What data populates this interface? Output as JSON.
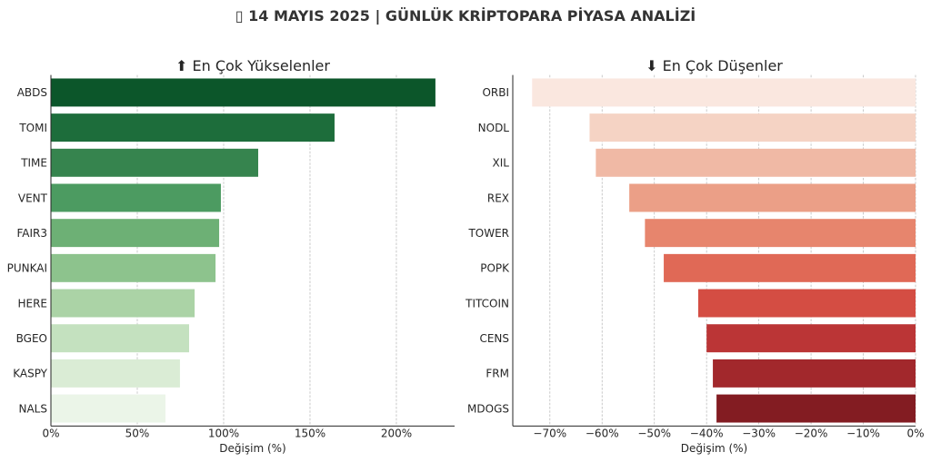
{
  "title": "▯ 14 MAYIS 2025 | GÜNLÜK KRİPTOPARA PİYASA ANALİZİ",
  "chart_data": [
    {
      "type": "bar",
      "orientation": "horizontal",
      "title": "⬆ En Çok Yükselenler",
      "xlabel": "Değişim (%)",
      "ylabel": "",
      "categories": [
        "ABDS",
        "TOMI",
        "TIME",
        "VENT",
        "FAIR3",
        "PUNKAI",
        "HERE",
        "BGEO",
        "KASPY",
        "NALS"
      ],
      "values": [
        222.6,
        164.2,
        120.0,
        98.4,
        97.4,
        95.3,
        83.2,
        80.0,
        74.7,
        66.3
      ],
      "colors": [
        "#0c562a",
        "#1d6d3b",
        "#36844e",
        "#4c9b61",
        "#6db075",
        "#8dc38d",
        "#abd3a6",
        "#c4e1bf",
        "#daecd5",
        "#ebf5e8"
      ],
      "xlim": [
        0,
        233.7
      ],
      "xticks": [
        0,
        50,
        100,
        150,
        200
      ],
      "xtick_labels": [
        "0%",
        "50%",
        "100%",
        "150%",
        "200%"
      ],
      "grid": true
    },
    {
      "type": "bar",
      "orientation": "horizontal",
      "title": "⬇ En Çok Düşenler",
      "xlabel": "Değişim (%)",
      "ylabel": "",
      "categories": [
        "ORBI",
        "NODL",
        "XIL",
        "REX",
        "TOWER",
        "POPK",
        "TITCOIN",
        "CENS",
        "FRM",
        "MDOGS"
      ],
      "values": [
        -73.4,
        -62.4,
        -61.2,
        -54.8,
        -51.8,
        -48.2,
        -41.6,
        -40.0,
        -38.8,
        -38.1
      ],
      "colors": [
        "#fae7df",
        "#f5d3c4",
        "#f0b9a5",
        "#eb9f87",
        "#e7856d",
        "#e06956",
        "#d44d43",
        "#bb3536",
        "#a2282c",
        "#831c22"
      ],
      "xlim": [
        -77.1,
        0
      ],
      "xticks": [
        -70,
        -60,
        -50,
        -40,
        -30,
        -20,
        -10,
        0
      ],
      "xtick_labels": [
        "−70%",
        "−60%",
        "−50%",
        "−40%",
        "−30%",
        "−20%",
        "−10%",
        "0%"
      ],
      "grid": true
    }
  ]
}
